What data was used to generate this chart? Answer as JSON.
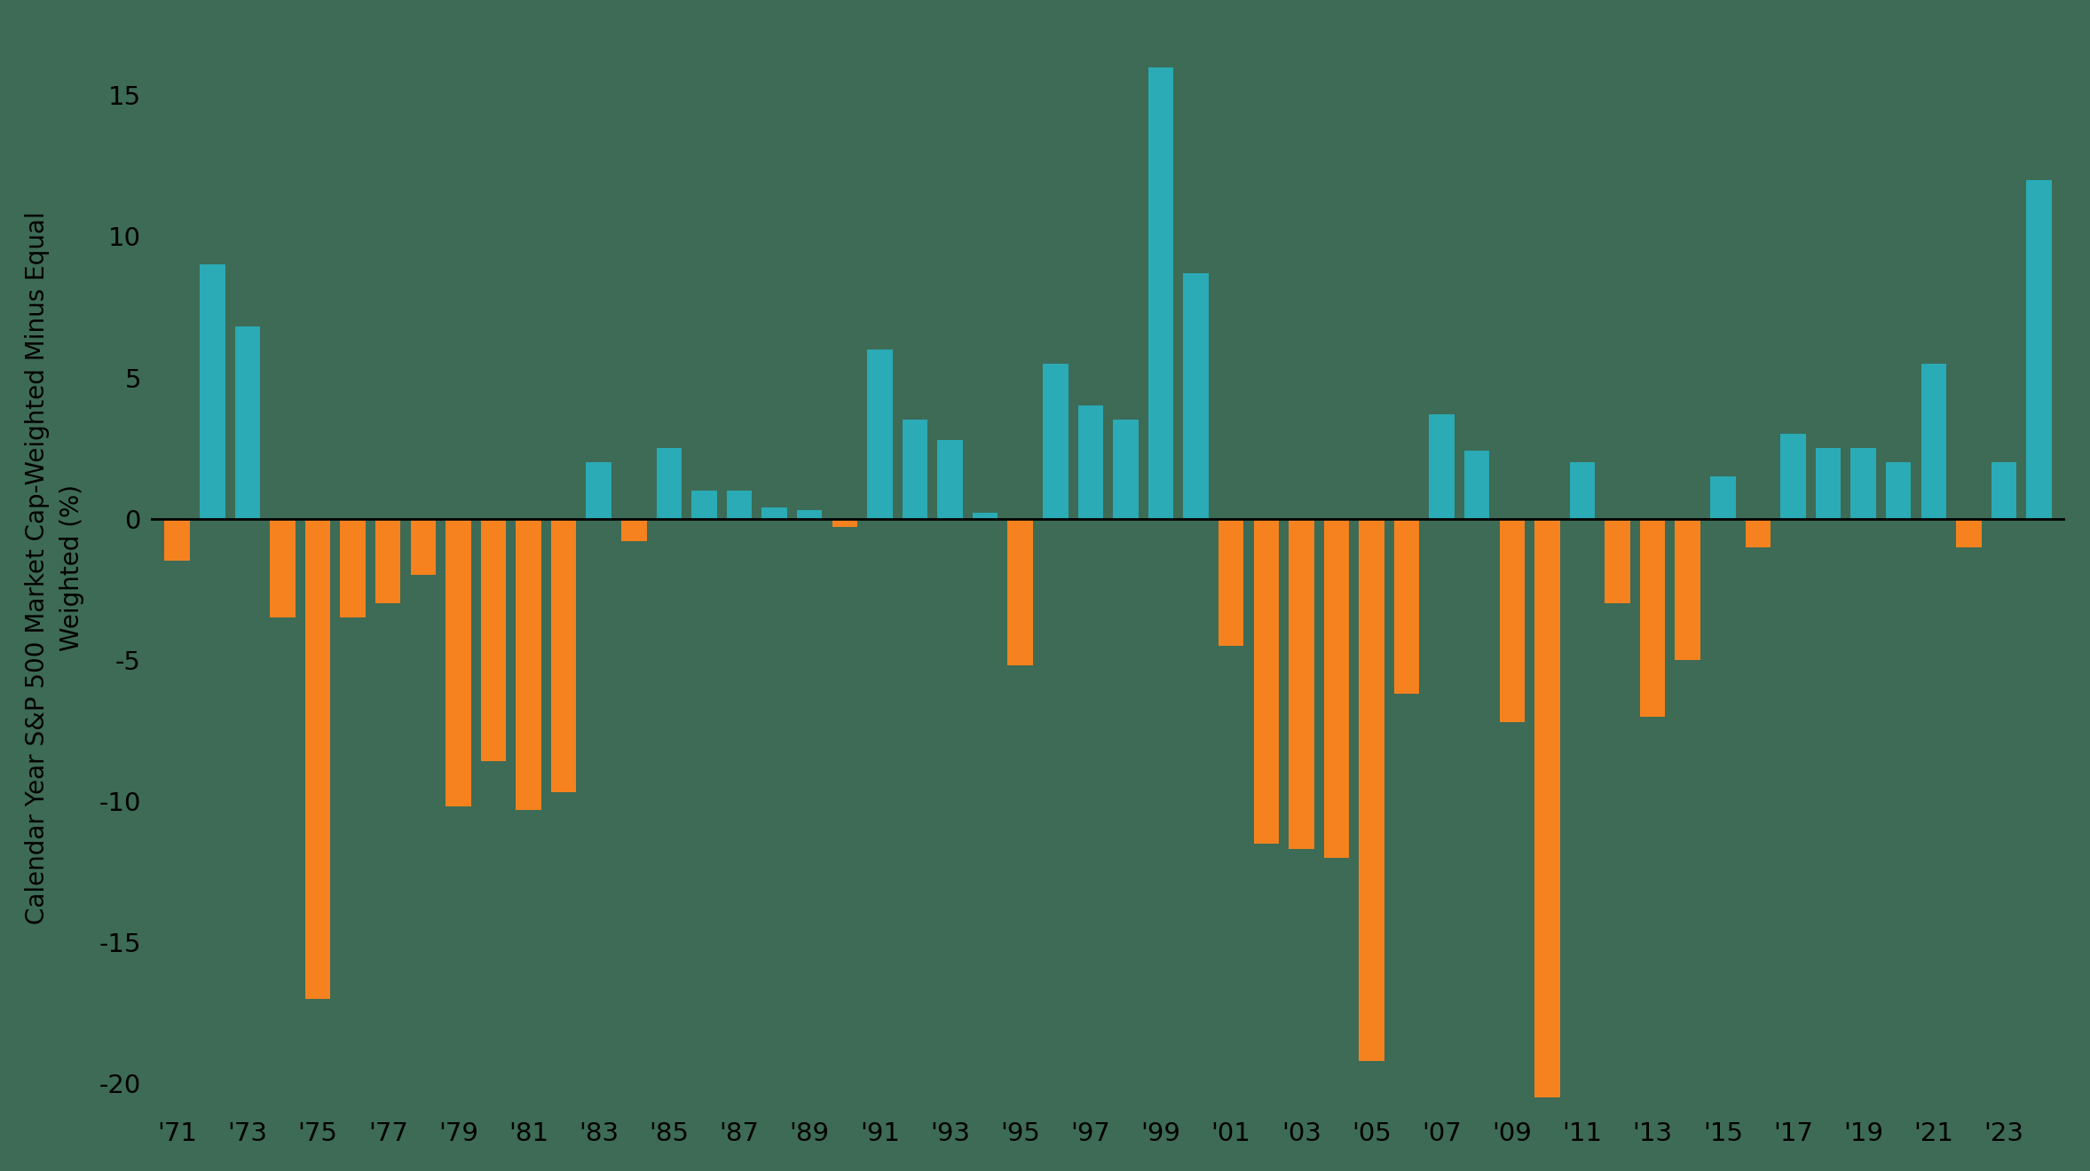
{
  "years": [
    1971,
    1972,
    1973,
    1974,
    1975,
    1976,
    1977,
    1978,
    1979,
    1980,
    1981,
    1982,
    1983,
    1984,
    1985,
    1986,
    1987,
    1988,
    1989,
    1990,
    1991,
    1992,
    1993,
    1994,
    1995,
    1996,
    1997,
    1998,
    1999,
    2000,
    2001,
    2002,
    2003,
    2004,
    2005,
    2006,
    2007,
    2008,
    2009,
    2010,
    2011,
    2012,
    2013,
    2014,
    2015,
    2016,
    2017,
    2018,
    2019,
    2020,
    2021,
    2022,
    2023,
    2024
  ],
  "values": [
    -1.5,
    9.0,
    6.8,
    -3.5,
    -17.0,
    -3.5,
    -3.0,
    -2.0,
    -10.2,
    -8.6,
    -10.3,
    -9.7,
    2.0,
    -0.8,
    2.5,
    1.0,
    1.0,
    0.4,
    0.3,
    -0.3,
    6.0,
    3.5,
    2.8,
    0.2,
    -5.2,
    5.5,
    4.0,
    3.5,
    16.0,
    8.7,
    -4.5,
    -11.5,
    -11.7,
    -12.0,
    -19.2,
    -6.2,
    3.7,
    2.4,
    -7.2,
    -20.5,
    2.0,
    -3.0,
    -7.0,
    -5.0,
    1.5,
    -1.0,
    3.0,
    2.5,
    2.5,
    2.0,
    5.5,
    -1.0,
    2.0,
    12.0
  ],
  "positive_color": "#2AABB5",
  "negative_color": "#F5821E",
  "background_color": "#3D6B56",
  "zero_line_color": "#000000",
  "ylabel": "Calendar Year S&P 500 Market Cap-Weighted Minus Equal\nWeighted (%)",
  "ylim": [
    -21,
    17.5
  ],
  "yticks": [
    -20,
    -15,
    -10,
    -5,
    0,
    5,
    10,
    15
  ],
  "figsize": [
    23.55,
    13.2
  ],
  "dpi": 100
}
